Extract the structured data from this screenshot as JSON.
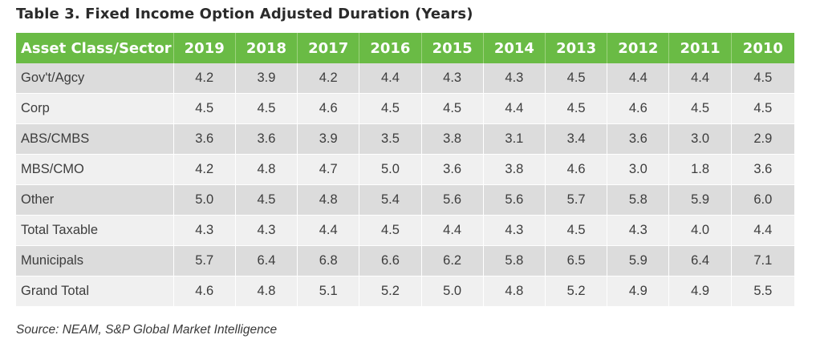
{
  "title": "Table 3. Fixed Income Option Adjusted Duration (Years)",
  "table": {
    "header_label": "Asset Class/Sector",
    "years": [
      "2019",
      "2018",
      "2017",
      "2016",
      "2015",
      "2014",
      "2013",
      "2012",
      "2011",
      "2010"
    ],
    "rows": [
      {
        "label": "Gov't/Agcy",
        "values": [
          "4.2",
          "3.9",
          "4.2",
          "4.4",
          "4.3",
          "4.3",
          "4.5",
          "4.4",
          "4.4",
          "4.5"
        ]
      },
      {
        "label": "Corp",
        "values": [
          "4.5",
          "4.5",
          "4.6",
          "4.5",
          "4.5",
          "4.4",
          "4.5",
          "4.6",
          "4.5",
          "4.5"
        ]
      },
      {
        "label": "ABS/CMBS",
        "values": [
          "3.6",
          "3.6",
          "3.9",
          "3.5",
          "3.8",
          "3.1",
          "3.4",
          "3.6",
          "3.0",
          "2.9"
        ]
      },
      {
        "label": "MBS/CMO",
        "values": [
          "4.2",
          "4.8",
          "4.7",
          "5.0",
          "3.6",
          "3.8",
          "4.6",
          "3.0",
          "1.8",
          "3.6"
        ]
      },
      {
        "label": "Other",
        "values": [
          "5.0",
          "4.5",
          "4.8",
          "5.4",
          "5.6",
          "5.6",
          "5.7",
          "5.8",
          "5.9",
          "6.0"
        ]
      },
      {
        "label": "Total Taxable",
        "values": [
          "4.3",
          "4.3",
          "4.4",
          "4.5",
          "4.4",
          "4.3",
          "4.5",
          "4.3",
          "4.0",
          "4.4"
        ]
      },
      {
        "label": "Municipals",
        "values": [
          "5.7",
          "6.4",
          "6.8",
          "6.6",
          "6.2",
          "5.8",
          "6.5",
          "5.9",
          "6.4",
          "7.1"
        ]
      },
      {
        "label": "Grand Total",
        "values": [
          "4.6",
          "4.8",
          "5.1",
          "5.2",
          "5.0",
          "4.8",
          "5.2",
          "4.9",
          "4.9",
          "5.5"
        ]
      }
    ]
  },
  "source": "Source: NEAM, S&P Global Market Intelligence",
  "colors": {
    "header_bg": "#6abb45",
    "row_odd": "#dcdcdc",
    "row_even": "#f0f0f0"
  }
}
